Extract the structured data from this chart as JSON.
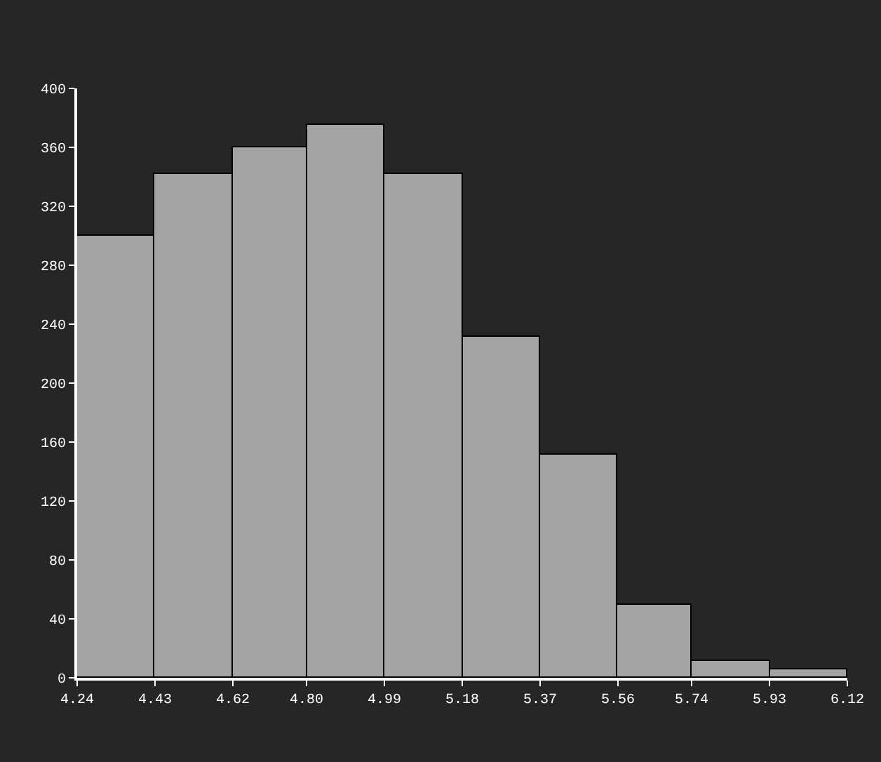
{
  "chart_data": {
    "type": "histogram",
    "bins": [
      4.24,
      4.43,
      4.62,
      4.8,
      4.99,
      5.18,
      5.37,
      5.56,
      5.74,
      5.93,
      6.12
    ],
    "values": [
      300,
      342,
      360,
      375,
      342,
      231,
      151,
      50,
      11,
      6
    ],
    "color": "#a3a3a3",
    "xlim": [
      4.24,
      6.12
    ],
    "xticks": [
      4.24,
      4.43,
      4.62,
      {
        "value": 4.8,
        "label": "4.80"
      },
      4.99,
      5.18,
      5.37,
      5.56,
      5.74,
      5.93,
      6.12
    ],
    "ylim": [
      0,
      400
    ],
    "yticks": [
      0,
      40,
      80,
      120,
      160,
      200,
      240,
      280,
      320,
      360,
      400
    ],
    "grid": false
  }
}
